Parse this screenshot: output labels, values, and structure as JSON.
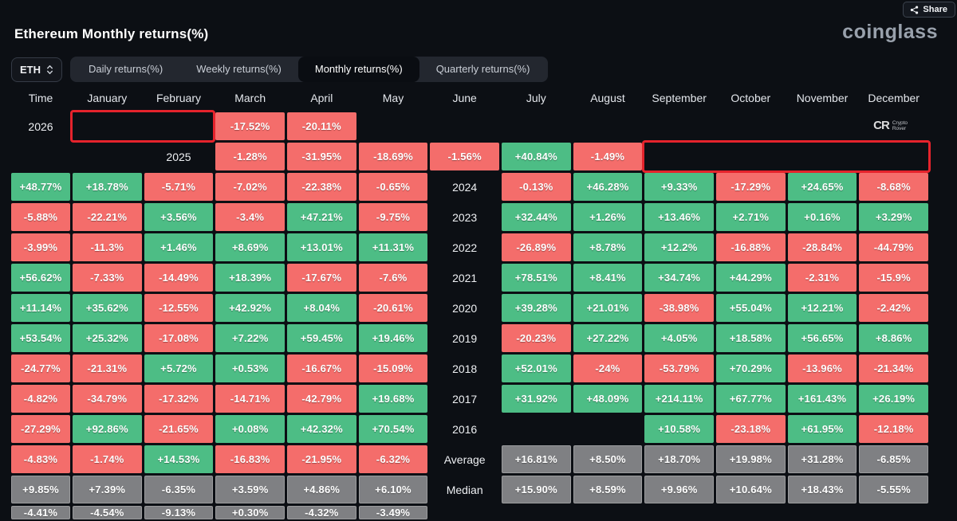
{
  "header": {
    "title": "Ethereum Monthly returns(%)",
    "share_label": "Share",
    "logo_text": "coinglass"
  },
  "controls": {
    "symbol_selector": "ETH",
    "tabs": [
      {
        "label": "Daily returns(%)",
        "active": false
      },
      {
        "label": "Weekly returns(%)",
        "active": false
      },
      {
        "label": "Monthly returns(%)",
        "active": true
      },
      {
        "label": "Quarterly returns(%)",
        "active": false
      }
    ]
  },
  "watermark": {
    "initials": "CR",
    "line1": "Crypto",
    "line2": "Rover"
  },
  "colors": {
    "positive": "#4dbd85",
    "negative": "#f46d6b",
    "summary": "#7f8083",
    "highlight_border": "#e5232c"
  },
  "table": {
    "time_label": "Time",
    "months": [
      "January",
      "February",
      "March",
      "April",
      "May",
      "June",
      "July",
      "August",
      "September",
      "October",
      "November",
      "December"
    ],
    "rows": [
      {
        "label": "2026",
        "values": [
          "-17.52%",
          "-20.11%",
          "",
          "",
          "",
          "",
          "",
          "",
          "",
          "",
          "",
          ""
        ],
        "highlight": [
          0,
          1
        ]
      },
      {
        "label": "2025",
        "values": [
          "-1.28%",
          "-31.95%",
          "-18.69%",
          "-1.56%",
          "+40.84%",
          "-1.49%",
          "+48.77%",
          "+18.78%",
          "-5.71%",
          "-7.02%",
          "-22.38%",
          "-0.65%"
        ],
        "highlight": [
          8,
          9,
          10,
          11
        ]
      },
      {
        "label": "2024",
        "values": [
          "-0.13%",
          "+46.28%",
          "+9.33%",
          "-17.29%",
          "+24.65%",
          "-8.68%",
          "-5.88%",
          "-22.21%",
          "+3.56%",
          "-3.4%",
          "+47.21%",
          "-9.75%"
        ]
      },
      {
        "label": "2023",
        "values": [
          "+32.44%",
          "+1.26%",
          "+13.46%",
          "+2.71%",
          "+0.16%",
          "+3.29%",
          "-3.99%",
          "-11.3%",
          "+1.46%",
          "+8.69%",
          "+13.01%",
          "+11.31%"
        ]
      },
      {
        "label": "2022",
        "values": [
          "-26.89%",
          "+8.78%",
          "+12.2%",
          "-16.88%",
          "-28.84%",
          "-44.79%",
          "+56.62%",
          "-7.33%",
          "-14.49%",
          "+18.39%",
          "-17.67%",
          "-7.6%"
        ]
      },
      {
        "label": "2021",
        "values": [
          "+78.51%",
          "+8.41%",
          "+34.74%",
          "+44.29%",
          "-2.31%",
          "-15.9%",
          "+11.14%",
          "+35.62%",
          "-12.55%",
          "+42.92%",
          "+8.04%",
          "-20.61%"
        ]
      },
      {
        "label": "2020",
        "values": [
          "+39.28%",
          "+21.01%",
          "-38.98%",
          "+55.04%",
          "+12.21%",
          "-2.42%",
          "+53.54%",
          "+25.32%",
          "-17.08%",
          "+7.22%",
          "+59.45%",
          "+19.46%"
        ]
      },
      {
        "label": "2019",
        "values": [
          "-20.23%",
          "+27.22%",
          "+4.05%",
          "+18.58%",
          "+56.65%",
          "+8.86%",
          "-24.77%",
          "-21.31%",
          "+5.72%",
          "+0.53%",
          "-16.67%",
          "-15.09%"
        ]
      },
      {
        "label": "2018",
        "values": [
          "+52.01%",
          "-24%",
          "-53.79%",
          "+70.29%",
          "-13.96%",
          "-21.34%",
          "-4.82%",
          "-34.79%",
          "-17.32%",
          "-14.71%",
          "-42.79%",
          "+19.68%"
        ]
      },
      {
        "label": "2017",
        "values": [
          "+31.92%",
          "+48.09%",
          "+214.11%",
          "+67.77%",
          "+161.43%",
          "+26.19%",
          "-27.29%",
          "+92.86%",
          "-21.65%",
          "+0.08%",
          "+42.32%",
          "+70.54%"
        ]
      },
      {
        "label": "2016",
        "values": [
          "",
          "",
          "+10.58%",
          "-23.18%",
          "+61.95%",
          "-12.18%",
          "-4.83%",
          "-1.74%",
          "+14.53%",
          "-16.83%",
          "-21.95%",
          "-6.32%"
        ]
      },
      {
        "label": "Average",
        "summary": true,
        "values": [
          "+16.81%",
          "+8.50%",
          "+18.70%",
          "+19.98%",
          "+31.28%",
          "-6.85%",
          "+9.85%",
          "+7.39%",
          "-6.35%",
          "+3.59%",
          "+4.86%",
          "+6.10%"
        ]
      },
      {
        "label": "Median",
        "summary": true,
        "values": [
          "+15.90%",
          "+8.59%",
          "+9.96%",
          "+10.64%",
          "+18.43%",
          "-5.55%",
          "-4.41%",
          "-4.54%",
          "-9.13%",
          "+0.30%",
          "-4.32%",
          "-3.49%"
        ]
      }
    ]
  }
}
